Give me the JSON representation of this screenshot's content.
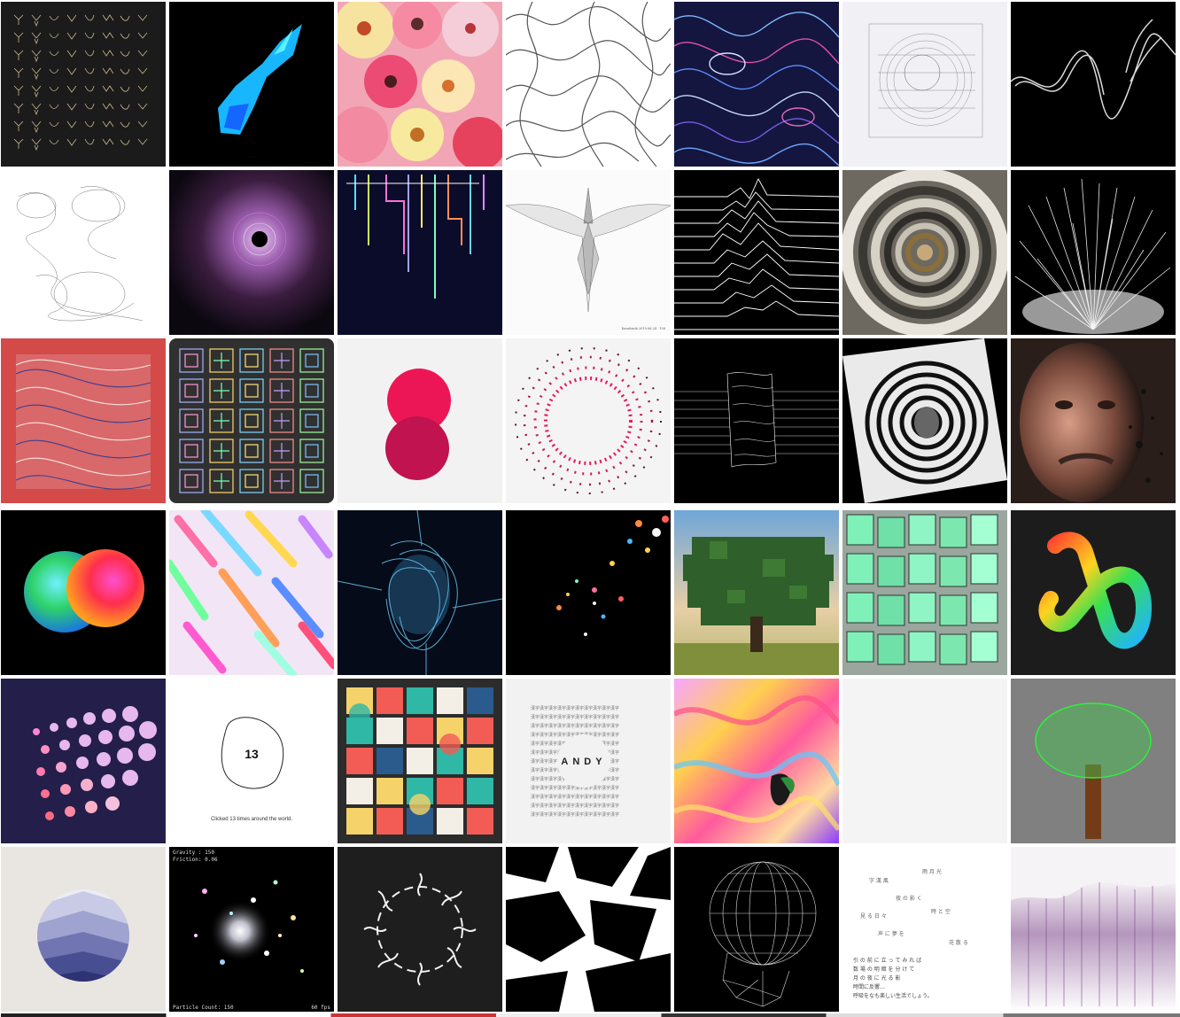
{
  "gallery": {
    "rows": 6,
    "columns": 7,
    "tiles": [
      {
        "name": "line-insects-grid",
        "title": ""
      },
      {
        "name": "blue-voxel-shape",
        "title": ""
      },
      {
        "name": "flower-collage",
        "title": ""
      },
      {
        "name": "truchet-curves",
        "title": ""
      },
      {
        "name": "blue-contour-flow",
        "title": ""
      },
      {
        "name": "sketched-sphere",
        "title": ""
      },
      {
        "name": "white-smoke",
        "title": ""
      },
      {
        "name": "ink-scribble",
        "title": ""
      },
      {
        "name": "purple-vortex",
        "title": ""
      },
      {
        "name": "neon-drip-lines",
        "title": ""
      },
      {
        "name": "xray-bird",
        "title": "Kenshiroh 2019.06.24 · 158"
      },
      {
        "name": "joy-division-lines",
        "title": ""
      },
      {
        "name": "spiral-staircase",
        "title": ""
      },
      {
        "name": "white-particle-burst",
        "title": ""
      },
      {
        "name": "red-flow-field",
        "title": ""
      },
      {
        "name": "pattern-tiles-grid",
        "title": ""
      },
      {
        "name": "pink-circles",
        "title": ""
      },
      {
        "name": "dotted-ring",
        "title": ""
      },
      {
        "name": "line-sculpture",
        "title": ""
      },
      {
        "name": "ring-portrait",
        "title": ""
      },
      {
        "name": "dissolving-face",
        "title": ""
      },
      {
        "name": "rainbow-spheres",
        "title": ""
      },
      {
        "name": "pastel-strokes",
        "title": ""
      },
      {
        "name": "blue-light-tangle",
        "title": ""
      },
      {
        "name": "colored-dots",
        "title": ""
      },
      {
        "name": "pixel-tree",
        "title": ""
      },
      {
        "name": "green-cubes",
        "title": ""
      },
      {
        "name": "rainbow-knot",
        "title": ""
      },
      {
        "name": "pink-bubble-rows",
        "title": ""
      },
      {
        "name": "click-counter-blob",
        "title": "Clicked 13 times around the world.",
        "value": "13"
      },
      {
        "name": "bauhaus-tiles",
        "title": ""
      },
      {
        "name": "kanji-andy",
        "title": "ANDY"
      },
      {
        "name": "marbled-paint",
        "title": ""
      },
      {
        "name": "blank-tile",
        "title": ""
      },
      {
        "name": "green-tree",
        "title": ""
      },
      {
        "name": "layered-circle",
        "title": ""
      },
      {
        "name": "glowing-particles",
        "title": "",
        "gravity": "Gravity : 150",
        "friction": "Friction: 0.06",
        "count": "Particle Count: 150",
        "fps": "60 fps"
      },
      {
        "name": "squiggle-ring",
        "title": ""
      },
      {
        "name": "black-arrows",
        "title": ""
      },
      {
        "name": "wireframe-head",
        "title": ""
      },
      {
        "name": "floating-kanji",
        "title": "",
        "lines": [
          "引 の 前 に 立 っ て み れ ば",
          "数 場 の 明 暗 を 分 け て",
          "月 の 夜 に 光 る 影",
          "時間に反響…",
          "呼吸をなも楽しい生活でしょう。"
        ]
      },
      {
        "name": "purple-curtain",
        "title": ""
      }
    ]
  },
  "colors": {
    "background": "#ffffff",
    "accent_pink": "#e8195a",
    "dark_navy": "#241f4a"
  }
}
